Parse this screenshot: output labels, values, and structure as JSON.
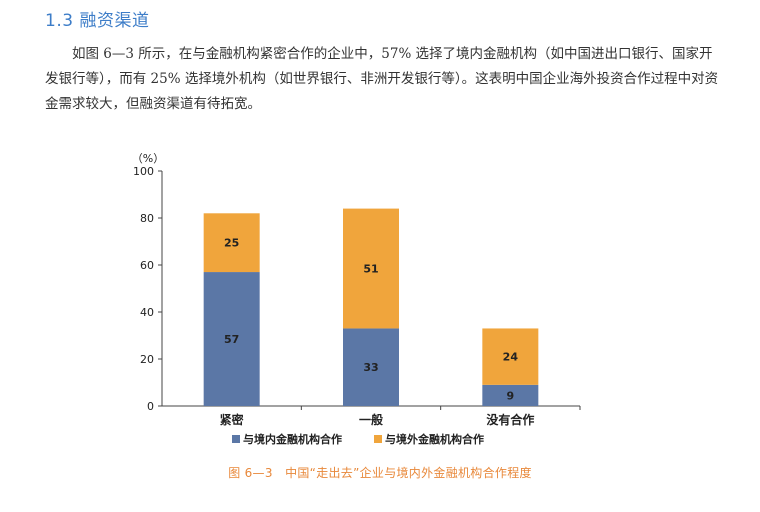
{
  "section": {
    "title": "1.3 融资渠道"
  },
  "paragraph": {
    "text": "如图 6—3 所示，在与金融机构紧密合作的企业中，57% 选择了境内金融机构（如中国进出口银行、国家开发银行等），而有 25% 选择境外机构（如世界银行、非洲开发银行等）。这表明中国企业海外投资合作过程中对资金需求较大，但融资渠道有待拓宽。"
  },
  "figure": {
    "caption": "图 6—3　中国“走出去”企业与境内外金融机构合作程度"
  },
  "chart_data": {
    "type": "bar",
    "stacked": true,
    "categories": [
      "紧密",
      "一般",
      "没有合作"
    ],
    "series": [
      {
        "name": "与境内金融机构合作",
        "values": [
          57,
          33,
          9
        ],
        "color": "#5b77a6"
      },
      {
        "name": "与境外金融机构合作",
        "values": [
          25,
          51,
          24
        ],
        "color": "#f0a53c"
      }
    ],
    "y_unit": "（%）",
    "ylim": [
      0,
      100
    ],
    "yticks": [
      0,
      20,
      40,
      60,
      80,
      100
    ],
    "grid": false,
    "legend_position": "bottom"
  }
}
